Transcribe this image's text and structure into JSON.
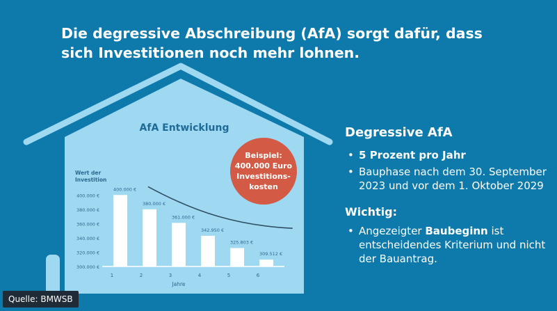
{
  "headline": "Die degressive Abschreibung (AfA) sorgt dafür, dass sich Investitionen noch mehr lohnen.",
  "colors": {
    "background": "#0d7aab",
    "house": "#9fd8f1",
    "bars": "#ffffff",
    "curve": "#2f4f63",
    "badge": "#d35a44",
    "source_bg": "#1f2b36"
  },
  "badge": {
    "text": "Beispiel: 400.000 Euro Investitions-kosten"
  },
  "chart_data": {
    "type": "bar",
    "title": "AfA Entwicklung",
    "ylabel": "Wert der Investition",
    "xlabel": "Jahre",
    "categories": [
      "1",
      "2",
      "3",
      "4",
      "5",
      "6"
    ],
    "values": [
      400000,
      380000,
      361000,
      342950,
      325803,
      309512
    ],
    "value_labels": [
      "400.000 €",
      "380.000 €",
      "361.000 €",
      "342.950 €",
      "325.803 €",
      "309.512 €"
    ],
    "yticks": [
      300000,
      320000,
      340000,
      360000,
      380000,
      400000
    ],
    "ytick_labels": [
      "300.000 €",
      "320.000 €",
      "340.000 €",
      "360.000 €",
      "380.000 €",
      "400.000 €"
    ],
    "ylim": [
      300000,
      410000
    ],
    "grid": false,
    "trend_curve": true
  },
  "sidebar": {
    "title": "Degressive AfA",
    "bullets": [
      {
        "marker": "•",
        "text": "5 Prozent pro Jahr"
      },
      {
        "marker": "•",
        "text": "Bauphase nach dem 30. September 2023 und vor dem 1. Oktober 2029"
      }
    ],
    "important_title": "Wichtig:",
    "important_marker": "•",
    "important_pre": "Angezeigter ",
    "important_bold": "Baubeginn",
    "important_post": " ist entscheidendes Kriterium und nicht der Bauantrag."
  },
  "source": "Quelle: BMWSB"
}
